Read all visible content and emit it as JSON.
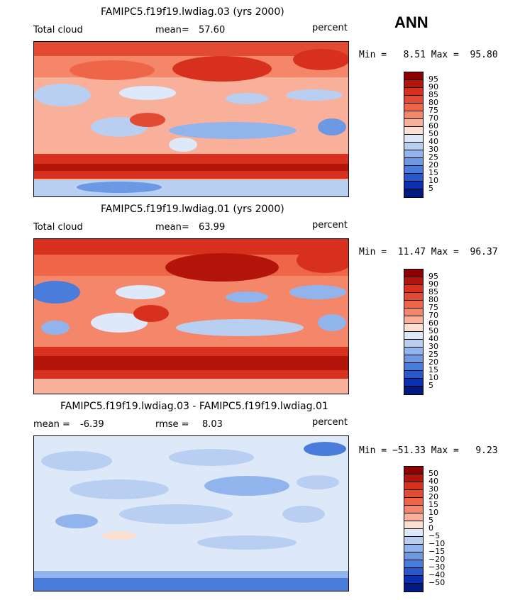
{
  "season": "ANN",
  "panels": [
    {
      "title": "FAMIPC5.f19f19.lwdiag.03 (yrs 2000)",
      "left_label": "Total cloud",
      "stat1_label": "mean=",
      "stat1_value": "57.60",
      "units": "percent",
      "minmax": "Min =   8.51 Max =  95.80",
      "levels": [
        "95",
        "90",
        "85",
        "80",
        "75",
        "70",
        "60",
        "50",
        "40",
        "30",
        "25",
        "20",
        "15",
        "10",
        "5"
      ]
    },
    {
      "title": "FAMIPC5.f19f19.lwdiag.01 (yrs 2000)",
      "left_label": "Total cloud",
      "stat1_label": "mean=",
      "stat1_value": "63.99",
      "units": "percent",
      "minmax": "Min =  11.47 Max =  96.37",
      "levels": [
        "95",
        "90",
        "85",
        "80",
        "75",
        "70",
        "60",
        "50",
        "40",
        "30",
        "25",
        "20",
        "15",
        "10",
        "5"
      ]
    },
    {
      "title": "FAMIPC5.f19f19.lwdiag.03 - FAMIPC5.f19f19.lwdiag.01",
      "left_label": "mean =",
      "left_value": "-6.39",
      "stat1_label": "rmse =",
      "stat1_value": "8.03",
      "units": "percent",
      "minmax": "Min = −51.33 Max =   9.23",
      "levels": [
        "50",
        "40",
        "30",
        "20",
        "15",
        "10",
        "5",
        "0",
        "−5",
        "−10",
        "−15",
        "−20",
        "−30",
        "−40",
        "−50"
      ]
    }
  ],
  "colors": {
    "scale": [
      "#8b0000",
      "#b3150b",
      "#d7301f",
      "#e34a33",
      "#ef6548",
      "#f4876a",
      "#f9b09a",
      "#fde0d2",
      "#dde8f8",
      "#b9cff2",
      "#92b4ec",
      "#6d98e4",
      "#4a7cdc",
      "#2858cc",
      "#0a2fb0",
      "#001a80"
    ],
    "land": "#000000"
  }
}
